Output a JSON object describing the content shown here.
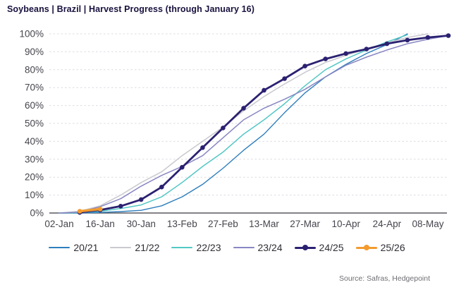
{
  "header": {
    "title": "Soybeans | Brazil | Harvest Progress (through January 16)",
    "title_color": "#19123e"
  },
  "footer": {
    "source": "Source: Safras, Hedgepoint"
  },
  "chart_data": {
    "type": "line",
    "title": "Soybeans | Brazil | Harvest Progress (through January 16)",
    "x": [
      "02-Jan",
      "09-Jan",
      "16-Jan",
      "23-Jan",
      "30-Jan",
      "06-Feb",
      "13-Feb",
      "20-Feb",
      "27-Feb",
      "06-Mar",
      "13-Mar",
      "20-Mar",
      "27-Mar",
      "03-Apr",
      "10-Apr",
      "17-Apr",
      "24-Apr",
      "01-May",
      "08-May",
      "15-May"
    ],
    "x_tick_labels": [
      "02-Jan",
      "16-Jan",
      "30-Jan",
      "13-Feb",
      "27-Feb",
      "13-Mar",
      "27-Mar",
      "10-Apr",
      "24-Apr",
      "08-May"
    ],
    "x_tick_indices": [
      0,
      2,
      4,
      6,
      8,
      10,
      12,
      14,
      16,
      18
    ],
    "y_tick_labels": [
      "0%",
      "10%",
      "20%",
      "30%",
      "40%",
      "50%",
      "60%",
      "70%",
      "80%",
      "90%",
      "100%"
    ],
    "y_ticks": [
      0,
      10,
      20,
      30,
      40,
      50,
      60,
      70,
      80,
      90,
      100
    ],
    "ylim": [
      0,
      100
    ],
    "grid": "horizontal-dashed",
    "gridline_color": "#dcdce2",
    "axis_line_color": "#5a5a60",
    "axis_text_color": "#45454d",
    "legend_position": "bottom",
    "source": "Source: Safras, Hedgepoint",
    "series": [
      {
        "name": "20/21",
        "color": "#2e7ebc",
        "width": 1.4,
        "markers": false,
        "values": [
          0,
          0,
          0.3,
          0.8,
          1.5,
          4,
          9,
          16,
          25,
          35,
          44,
          56,
          67,
          76,
          83,
          89,
          94,
          100,
          null,
          null
        ]
      },
      {
        "name": "21/22",
        "color": "#c9c9cf",
        "width": 1.5,
        "markers": false,
        "values": [
          0,
          1,
          4,
          10,
          17,
          23,
          32,
          40,
          48,
          57,
          65,
          72,
          78.5,
          84,
          88,
          91.5,
          95,
          98,
          100,
          null
        ]
      },
      {
        "name": "22/23",
        "color": "#53c7c5",
        "width": 1.5,
        "markers": false,
        "values": [
          0,
          0.2,
          1,
          2.5,
          4.5,
          9,
          17,
          26,
          34,
          44,
          52,
          61,
          71,
          80,
          86,
          91,
          95.5,
          99.5,
          null,
          null
        ]
      },
      {
        "name": "23/24",
        "color": "#8886c2",
        "width": 1.5,
        "markers": false,
        "values": [
          0,
          0.5,
          3.5,
          8,
          15,
          21,
          26,
          32,
          42,
          52,
          58.5,
          63.5,
          69,
          76,
          82.5,
          87,
          91,
          94.5,
          97,
          99
        ]
      },
      {
        "name": "24/25",
        "color": "#2b2171",
        "width": 2.8,
        "markers": true,
        "values": [
          null,
          0.3,
          1.7,
          3.8,
          7.5,
          14.5,
          25.5,
          36.5,
          47.5,
          58.5,
          68.5,
          75,
          82,
          86,
          89,
          91.5,
          94.5,
          96.5,
          98,
          99
        ]
      },
      {
        "name": "25/26",
        "color": "#f39b2d",
        "width": 3.4,
        "markers": true,
        "values": [
          null,
          1,
          2.2,
          null,
          null,
          null,
          null,
          null,
          null,
          null,
          null,
          null,
          null,
          null,
          null,
          null,
          null,
          null,
          null,
          null
        ]
      }
    ]
  }
}
